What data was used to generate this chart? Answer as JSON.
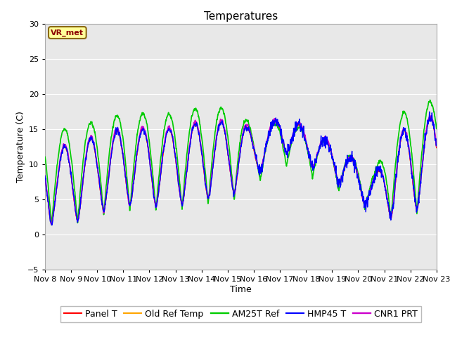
{
  "title": "Temperatures",
  "xlabel": "Time",
  "ylabel": "Temperature (C)",
  "ylim": [
    -5,
    30
  ],
  "yticks": [
    -5,
    0,
    5,
    10,
    15,
    20,
    25,
    30
  ],
  "x_labels": [
    "Nov 8",
    "Nov 9",
    "Nov 10",
    "Nov 11",
    "Nov 12",
    "Nov 13",
    "Nov 14",
    "Nov 15",
    "Nov 16",
    "Nov 17",
    "Nov 18",
    "Nov 19",
    "Nov 20",
    "Nov 21",
    "Nov 22",
    "Nov 23"
  ],
  "legend_entries": [
    "Panel T",
    "Old Ref Temp",
    "AM25T Ref",
    "HMP45 T",
    "CNR1 PRT"
  ],
  "line_colors": [
    "#ff0000",
    "#ffa500",
    "#00cc00",
    "#0000ff",
    "#cc00cc"
  ],
  "line_widths": [
    1.0,
    1.0,
    1.2,
    1.0,
    1.2
  ],
  "background_color": "#ffffff",
  "plot_bg_color": "#e8e8e8",
  "grid_color": "#ffffff",
  "annotation_text": "VR_met",
  "annotation_color": "#8b0000",
  "annotation_bg": "#ffff99",
  "annotation_border": "#8b6914",
  "title_fontsize": 11,
  "label_fontsize": 9,
  "tick_fontsize": 8,
  "legend_fontsize": 9
}
